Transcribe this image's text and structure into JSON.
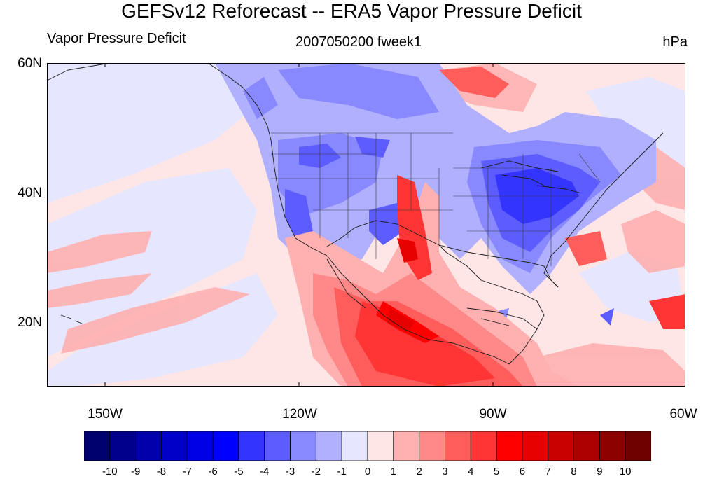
{
  "title": "GEFSv12 Reforecast -- ERA5 Vapor Pressure Deficit",
  "left_string": "Vapor Pressure Deficit",
  "center_string": "2007050200 fweek1",
  "right_string": "hPa",
  "map": {
    "projection": "cylindrical-equidistant",
    "lon_range": [
      -160,
      -60
    ],
    "lat_range": [
      10,
      60
    ],
    "lat_labels": [
      "60N",
      "40N",
      "20N"
    ],
    "lon_labels": [
      "150W",
      "120W",
      "90W",
      "60W"
    ],
    "features": [
      "coastlines",
      "us-state-boundaries",
      "country-boundaries"
    ]
  },
  "colorbar": {
    "labels": [
      "-10",
      "-9",
      "-8",
      "-7",
      "-6",
      "-5",
      "-4",
      "-3",
      "-2",
      "-1",
      "0",
      "1",
      "2",
      "3",
      "4",
      "5",
      "6",
      "7",
      "8",
      "9",
      "10"
    ],
    "colors": [
      "#00006e",
      "#00008c",
      "#0000aa",
      "#0000c8",
      "#0000e6",
      "#0000ff",
      "#3434ff",
      "#5c5cff",
      "#8888ff",
      "#b0b0ff",
      "#e6e6ff",
      "#ffe6e6",
      "#ffb0b0",
      "#ff8888",
      "#ff5c5c",
      "#ff3434",
      "#ff0000",
      "#e60000",
      "#c80000",
      "#aa0000",
      "#8c0000",
      "#6e0000"
    ]
  }
}
